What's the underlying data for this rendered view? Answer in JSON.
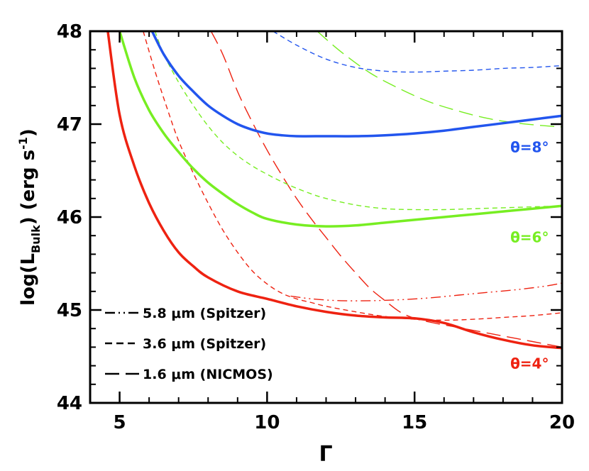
{
  "chart_data": {
    "type": "line",
    "title": "",
    "xlabel": "Γ",
    "ylabel": {
      "prefix": "log(L",
      "subscript": "Bulk",
      "suffix": ") (erg s",
      "superscript": "-1",
      "close": ")"
    },
    "xlim": [
      4,
      20
    ],
    "ylim": [
      44,
      48
    ],
    "xticks": [
      5,
      10,
      15,
      20
    ],
    "yticks": [
      44,
      45,
      46,
      47,
      48
    ],
    "xtick_labels": [
      "5",
      "10",
      "15",
      "20"
    ],
    "ytick_labels": [
      "44",
      "45",
      "46",
      "47",
      "48"
    ],
    "colors": {
      "theta4": "#ee2211",
      "theta6": "#77ee22",
      "theta8": "#2255ee",
      "axis": "#000000"
    },
    "legend": [
      {
        "style": "dash-dot",
        "label": "5.8 μm (Spitzer)"
      },
      {
        "style": "short-dash",
        "label": "3.6 μm (Spitzer)"
      },
      {
        "style": "long-dash",
        "label": "1.6 μm (NICMOS)"
      }
    ],
    "annotations": [
      {
        "text": "θ=8°",
        "color_key": "theta8",
        "x": 18.9,
        "y": 46.7
      },
      {
        "text": "θ=6°",
        "color_key": "theta6",
        "x": 18.9,
        "y": 45.73
      },
      {
        "text": "θ=4°",
        "color_key": "theta4",
        "x": 18.9,
        "y": 44.37
      }
    ],
    "series": [
      {
        "name": "theta4-bulk",
        "color_key": "theta4",
        "style": "solid",
        "width": 3.5,
        "x": [
          4.6,
          5,
          5.5,
          6,
          6.5,
          7,
          7.5,
          8,
          9,
          10,
          11,
          12,
          13,
          14,
          15,
          16,
          17,
          18,
          19,
          20
        ],
        "y": [
          48.0,
          47.1,
          46.55,
          46.15,
          45.85,
          45.62,
          45.47,
          45.35,
          45.2,
          45.12,
          45.04,
          44.98,
          44.94,
          44.92,
          44.91,
          44.86,
          44.76,
          44.68,
          44.62,
          44.59
        ]
      },
      {
        "name": "theta4-5.8um",
        "color_key": "theta4",
        "style": "dash-dot",
        "width": 1.4,
        "x": [
          10.8,
          11.5,
          12.5,
          13.5,
          14.5,
          15.5,
          16.5,
          17.5,
          18.5,
          19.5,
          20
        ],
        "y": [
          45.15,
          45.12,
          45.1,
          45.1,
          45.11,
          45.13,
          45.16,
          45.19,
          45.22,
          45.26,
          45.29
        ]
      },
      {
        "name": "theta4-3.6um",
        "color_key": "theta4",
        "style": "short-dash",
        "width": 1.4,
        "x": [
          5.8,
          6.2,
          6.6,
          7,
          7.5,
          8,
          8.5,
          9,
          9.5,
          10,
          10.5,
          11,
          11.5,
          12,
          13,
          14,
          15,
          16,
          17,
          18,
          19,
          20
        ],
        "y": [
          48.0,
          47.57,
          47.18,
          46.82,
          46.47,
          46.15,
          45.86,
          45.62,
          45.42,
          45.28,
          45.18,
          45.12,
          45.08,
          45.04,
          44.98,
          44.93,
          44.9,
          44.89,
          44.9,
          44.92,
          44.94,
          44.97
        ]
      },
      {
        "name": "theta4-1.6um",
        "color_key": "theta4",
        "style": "long-dash",
        "width": 1.4,
        "x": [
          8.1,
          8.5,
          9,
          9.5,
          10,
          10.5,
          11,
          11.5,
          12,
          12.5,
          13,
          13.5,
          14,
          14.5,
          15,
          15.5,
          16,
          17,
          18,
          19,
          20
        ],
        "y": [
          48.0,
          47.75,
          47.35,
          47.02,
          46.72,
          46.45,
          46.2,
          45.98,
          45.78,
          45.58,
          45.4,
          45.23,
          45.1,
          44.98,
          44.91,
          44.87,
          44.84,
          44.78,
          44.72,
          44.66,
          44.6
        ]
      },
      {
        "name": "theta6-bulk",
        "color_key": "theta6",
        "style": "solid",
        "width": 3.5,
        "x": [
          5.0,
          5.5,
          6,
          6.5,
          7,
          7.5,
          8,
          8.5,
          9,
          9.5,
          10,
          11,
          12,
          13,
          14,
          15,
          16,
          17,
          18,
          19,
          20
        ],
        "y": [
          48.0,
          47.5,
          47.15,
          46.9,
          46.7,
          46.52,
          46.37,
          46.25,
          46.14,
          46.05,
          45.98,
          45.92,
          45.9,
          45.91,
          45.94,
          45.97,
          46.0,
          46.03,
          46.06,
          46.09,
          46.12
        ]
      },
      {
        "name": "theta6-3.6um",
        "color_key": "theta6",
        "style": "short-dash",
        "width": 1.4,
        "x": [
          6.2,
          6.5,
          7,
          7.5,
          8,
          8.5,
          9,
          9.5,
          10,
          10.5,
          11,
          11.5,
          12,
          13,
          14,
          15,
          16,
          17,
          18,
          19,
          20
        ],
        "y": [
          48.0,
          47.75,
          47.45,
          47.2,
          46.98,
          46.8,
          46.66,
          46.55,
          46.46,
          46.38,
          46.31,
          46.25,
          46.2,
          46.13,
          46.09,
          46.08,
          46.08,
          46.09,
          46.1,
          46.11,
          46.12
        ]
      },
      {
        "name": "theta6-1.6um",
        "color_key": "theta6",
        "style": "long-dash",
        "width": 1.4,
        "x": [
          11.7,
          12.5,
          13.5,
          14.5,
          15.5,
          16.5,
          17.5,
          18.5,
          19.5,
          20
        ],
        "y": [
          48.0,
          47.78,
          47.55,
          47.38,
          47.24,
          47.14,
          47.06,
          47.01,
          46.98,
          46.97
        ]
      },
      {
        "name": "theta8-bulk",
        "color_key": "theta8",
        "style": "solid",
        "width": 3.5,
        "x": [
          6.1,
          6.5,
          7,
          7.5,
          8,
          8.5,
          9,
          9.5,
          10,
          10.5,
          11,
          12,
          13,
          14,
          15,
          16,
          17,
          18,
          19,
          20
        ],
        "y": [
          48.0,
          47.75,
          47.52,
          47.35,
          47.2,
          47.09,
          47.0,
          46.94,
          46.9,
          46.88,
          46.87,
          46.87,
          46.87,
          46.88,
          46.9,
          46.93,
          46.97,
          47.01,
          47.05,
          47.09
        ]
      },
      {
        "name": "theta8-3.6um",
        "color_key": "theta8",
        "style": "short-dash",
        "width": 1.4,
        "x": [
          10.2,
          11,
          12,
          13,
          14,
          15,
          16,
          17,
          18,
          19,
          20
        ],
        "y": [
          48.0,
          47.85,
          47.7,
          47.61,
          47.57,
          47.56,
          47.57,
          47.58,
          47.6,
          47.61,
          47.63
        ]
      }
    ]
  }
}
